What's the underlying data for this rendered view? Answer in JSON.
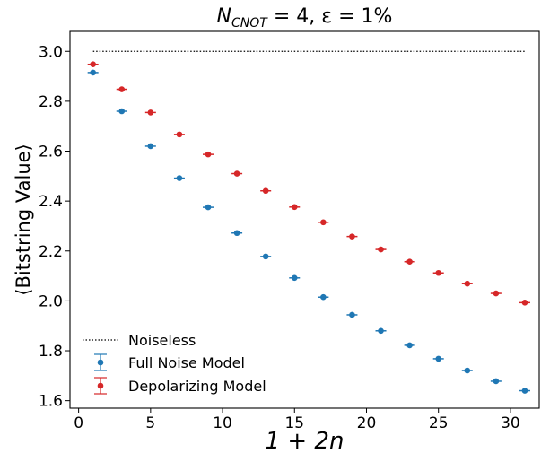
{
  "chart_data": {
    "type": "scatter",
    "title": {
      "prefix": "N",
      "subscript": "CNOT",
      "suffix": " = 4, ε = 1%"
    },
    "xlabel": "1 + 2n",
    "ylabel": "⟨Bitstring Value⟩",
    "xlim": [
      -0.6,
      32.0
    ],
    "ylim": [
      1.57,
      3.08
    ],
    "xticks": [
      0,
      5,
      10,
      15,
      20,
      25,
      30
    ],
    "yticks": [
      1.6,
      1.8,
      2.0,
      2.2,
      2.4,
      2.6,
      2.8,
      3.0
    ],
    "ytick_labels": [
      "1.6",
      "1.8",
      "2.0",
      "2.2",
      "2.4",
      "2.6",
      "2.8",
      "3.0"
    ],
    "grid": false,
    "legend_position": "lower-left",
    "series": [
      {
        "name": "Noiseless",
        "style": "dotted-line",
        "color": "#000000",
        "x": [
          1,
          31
        ],
        "y": [
          3.0,
          3.0
        ]
      },
      {
        "name": "Full Noise Model",
        "style": "errorbar",
        "color": "#1f77b4",
        "x": [
          1,
          3,
          5,
          7,
          9,
          11,
          13,
          15,
          17,
          19,
          21,
          23,
          25,
          27,
          29,
          31
        ],
        "y": [
          2.915,
          2.76,
          2.62,
          2.492,
          2.375,
          2.272,
          2.178,
          2.092,
          2.015,
          1.944,
          1.88,
          1.822,
          1.768,
          1.721,
          1.678,
          1.64
        ]
      },
      {
        "name": "Depolarizing Model",
        "style": "errorbar",
        "color": "#d62728",
        "x": [
          1,
          3,
          5,
          7,
          9,
          11,
          13,
          15,
          17,
          19,
          21,
          23,
          25,
          27,
          29,
          31
        ],
        "y": [
          2.948,
          2.848,
          2.755,
          2.667,
          2.587,
          2.51,
          2.441,
          2.376,
          2.315,
          2.258,
          2.206,
          2.157,
          2.112,
          2.069,
          2.03,
          1.993
        ]
      }
    ]
  }
}
